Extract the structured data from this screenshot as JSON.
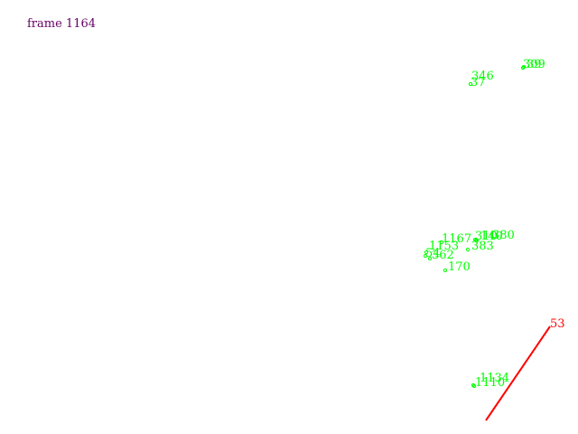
{
  "frame": {
    "label": "frame 1164",
    "color": "#660066"
  },
  "colors": {
    "point": "#00ff00",
    "track": "#ff0000"
  },
  "points": [
    {
      "id": "points-309",
      "label": "309"
    },
    {
      "id": "points-39",
      "label": "39"
    },
    {
      "id": "points-346",
      "label": "346"
    },
    {
      "id": "points-37",
      "label": "37"
    },
    {
      "id": "points-1167",
      "label": "1167"
    },
    {
      "id": "points-310",
      "label": "310"
    },
    {
      "id": "points-140",
      "label": "140"
    },
    {
      "id": "points-380",
      "label": "380"
    },
    {
      "id": "points-1153",
      "label": "1153"
    },
    {
      "id": "points-383",
      "label": "383"
    },
    {
      "id": "points-54",
      "label": "54"
    },
    {
      "id": "points-362",
      "label": "362"
    },
    {
      "id": "points-170",
      "label": "170"
    },
    {
      "id": "points-1134",
      "label": "1134"
    },
    {
      "id": "points-1110",
      "label": "1110"
    }
  ],
  "track": {
    "label": "53"
  }
}
